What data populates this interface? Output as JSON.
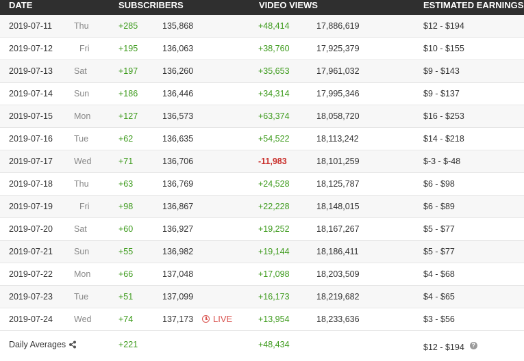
{
  "header": {
    "date": "DATE",
    "subscribers": "SUBSCRIBERS",
    "video_views": "VIDEO VIEWS",
    "estimated_earnings": "ESTIMATED EARNINGS"
  },
  "rows": [
    {
      "date": "2019-07-11",
      "day": "Thu",
      "subs_change": "+285",
      "subs_total": "135,868",
      "views_change": "+48,414",
      "views_total": "17,886,619",
      "earnings": "$12  -  $194"
    },
    {
      "date": "2019-07-12",
      "day": "Fri",
      "subs_change": "+195",
      "subs_total": "136,063",
      "views_change": "+38,760",
      "views_total": "17,925,379",
      "earnings": "$10  -  $155"
    },
    {
      "date": "2019-07-13",
      "day": "Sat",
      "subs_change": "+197",
      "subs_total": "136,260",
      "views_change": "+35,653",
      "views_total": "17,961,032",
      "earnings": "$9  -  $143"
    },
    {
      "date": "2019-07-14",
      "day": "Sun",
      "subs_change": "+186",
      "subs_total": "136,446",
      "views_change": "+34,314",
      "views_total": "17,995,346",
      "earnings": "$9  -  $137"
    },
    {
      "date": "2019-07-15",
      "day": "Mon",
      "subs_change": "+127",
      "subs_total": "136,573",
      "views_change": "+63,374",
      "views_total": "18,058,720",
      "earnings": "$16  -  $253"
    },
    {
      "date": "2019-07-16",
      "day": "Tue",
      "subs_change": "+62",
      "subs_total": "136,635",
      "views_change": "+54,522",
      "views_total": "18,113,242",
      "earnings": "$14  -  $218"
    },
    {
      "date": "2019-07-17",
      "day": "Wed",
      "subs_change": "+71",
      "subs_total": "136,706",
      "views_change": "-11,983",
      "views_total": "18,101,259",
      "earnings": "$-3  -  $-48"
    },
    {
      "date": "2019-07-18",
      "day": "Thu",
      "subs_change": "+63",
      "subs_total": "136,769",
      "views_change": "+24,528",
      "views_total": "18,125,787",
      "earnings": "$6  -  $98"
    },
    {
      "date": "2019-07-19",
      "day": "Fri",
      "subs_change": "+98",
      "subs_total": "136,867",
      "views_change": "+22,228",
      "views_total": "18,148,015",
      "earnings": "$6  -  $89"
    },
    {
      "date": "2019-07-20",
      "day": "Sat",
      "subs_change": "+60",
      "subs_total": "136,927",
      "views_change": "+19,252",
      "views_total": "18,167,267",
      "earnings": "$5  -  $77"
    },
    {
      "date": "2019-07-21",
      "day": "Sun",
      "subs_change": "+55",
      "subs_total": "136,982",
      "views_change": "+19,144",
      "views_total": "18,186,411",
      "earnings": "$5  -  $77"
    },
    {
      "date": "2019-07-22",
      "day": "Mon",
      "subs_change": "+66",
      "subs_total": "137,048",
      "views_change": "+17,098",
      "views_total": "18,203,509",
      "earnings": "$4  -  $68"
    },
    {
      "date": "2019-07-23",
      "day": "Tue",
      "subs_change": "+51",
      "subs_total": "137,099",
      "views_change": "+16,173",
      "views_total": "18,219,682",
      "earnings": "$4  -  $65"
    },
    {
      "date": "2019-07-24",
      "day": "Wed",
      "subs_change": "+74",
      "subs_total": "137,173",
      "views_change": "+13,954",
      "views_total": "18,233,636",
      "earnings": "$3  -  $56",
      "live": "LIVE"
    }
  ],
  "footer": {
    "label": "Daily Averages",
    "subs_avg": "+221",
    "views_avg": "+48,434",
    "earnings_avg": "$12  -  $194",
    "help": "?"
  },
  "icons": {
    "share": "share-icon",
    "clock": "clock-icon",
    "help": "help-icon"
  },
  "colors": {
    "header_bg": "#2f2f2f",
    "positive": "#3c9a1b",
    "negative": "#c9302c",
    "live": "#d9534f"
  }
}
